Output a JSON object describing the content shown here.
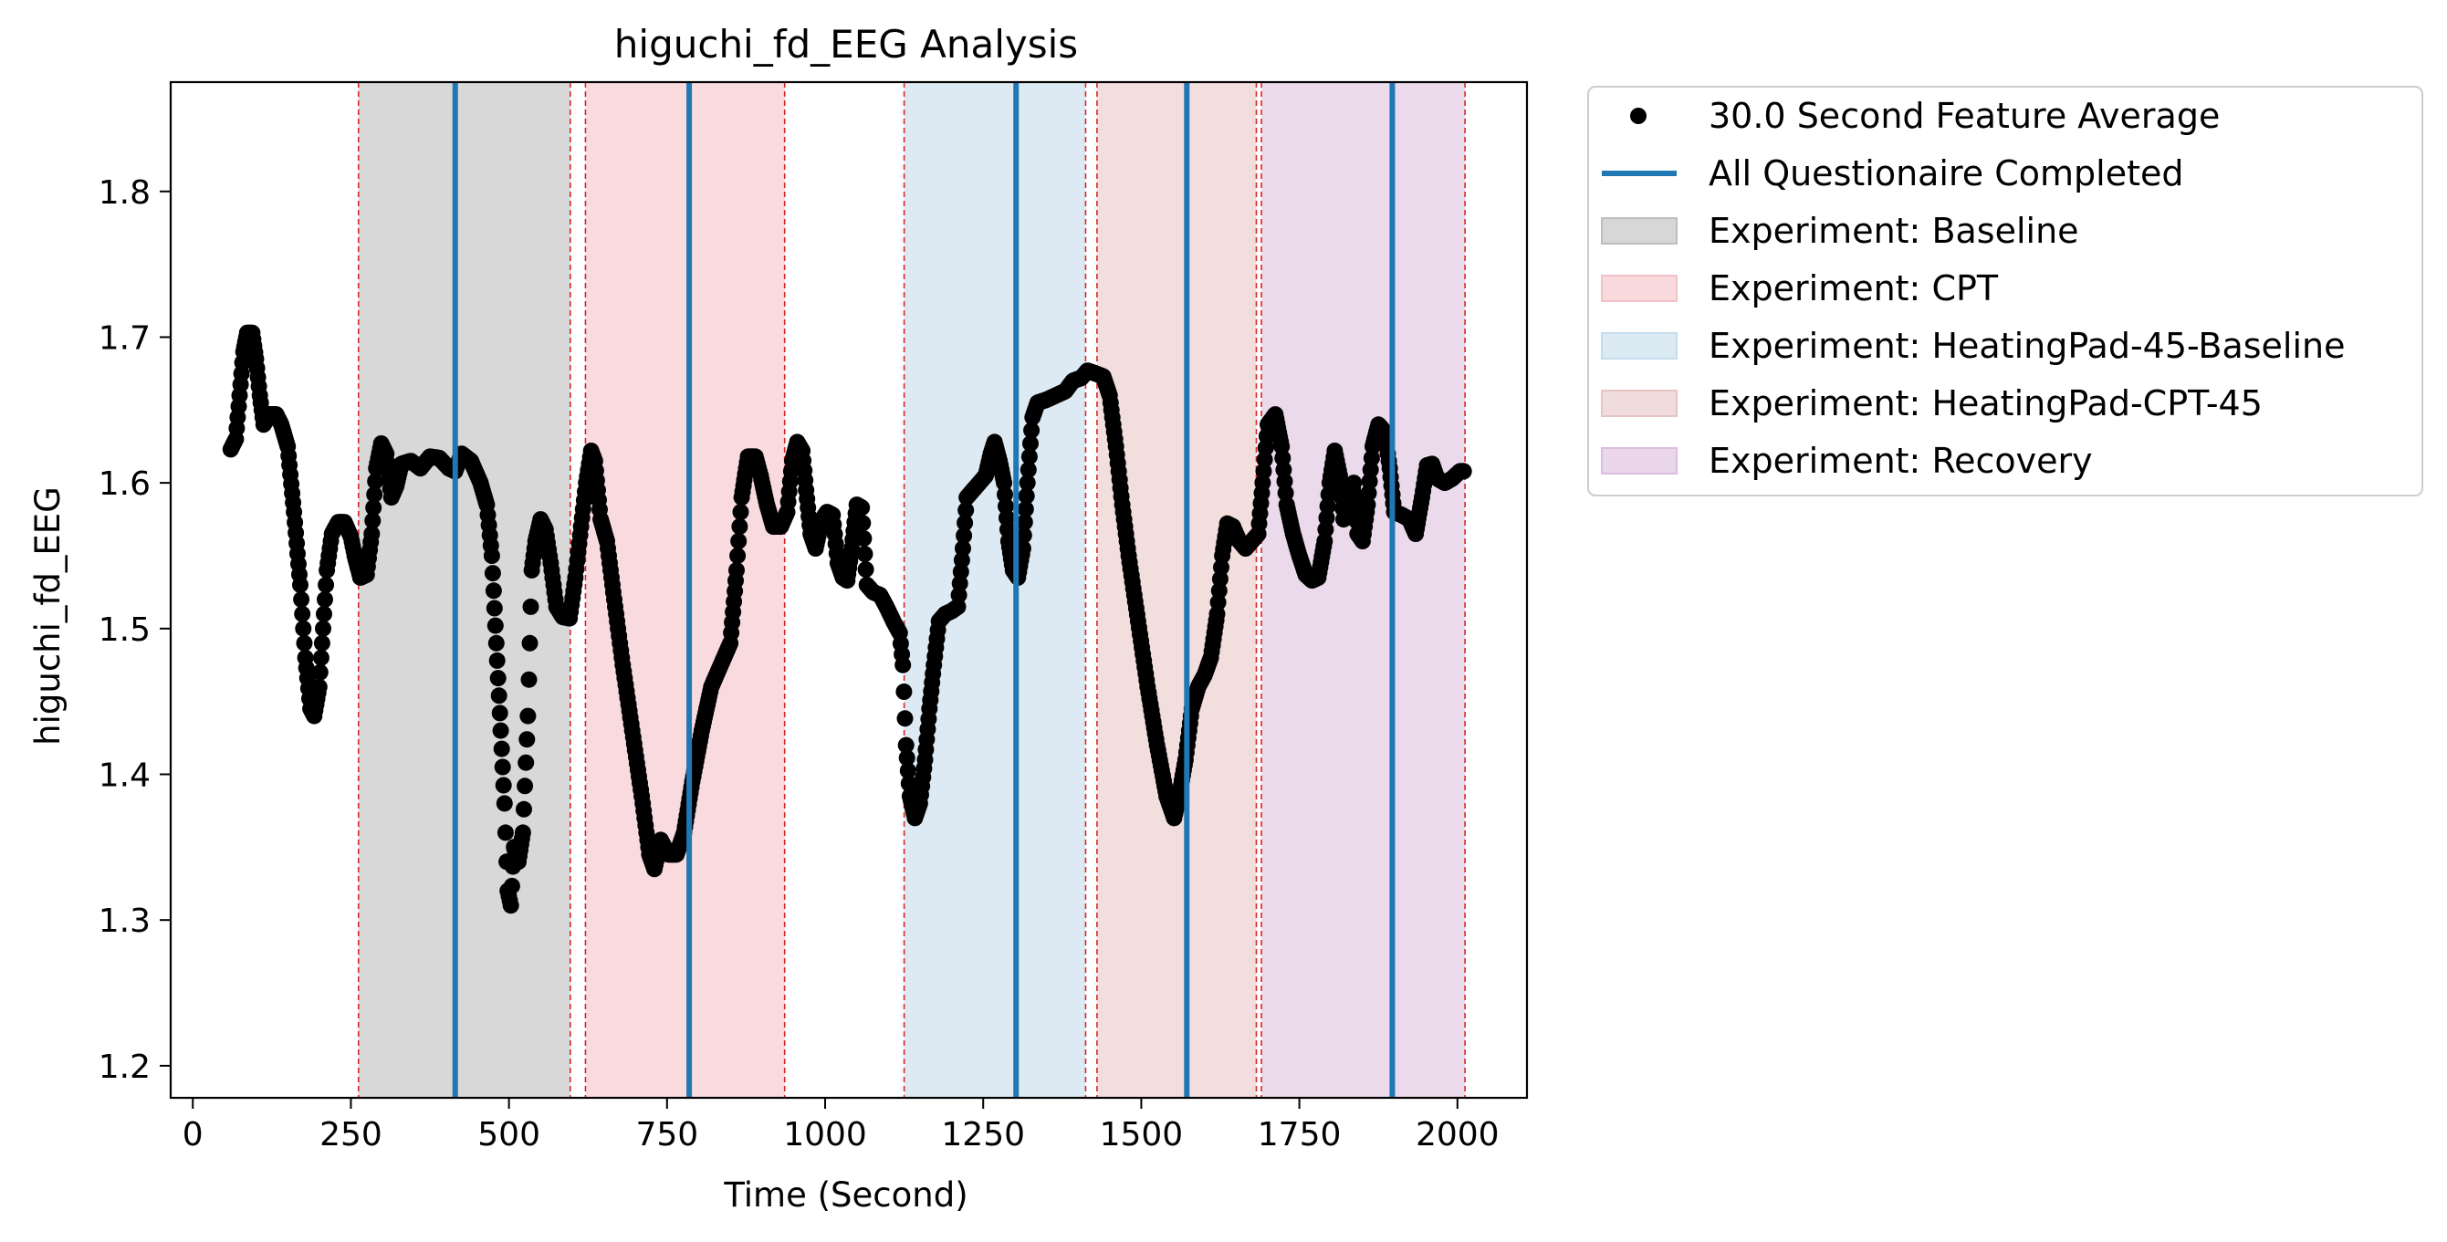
{
  "chart_data": {
    "type": "scatter",
    "title": "higuchi_fd_EEG Analysis",
    "xlabel": "Time (Second)",
    "ylabel": "higuchi_fd_EEG",
    "xlim": [
      -35,
      2110
    ],
    "ylim": [
      1.178,
      1.875
    ],
    "xticks": [
      0,
      250,
      500,
      750,
      1000,
      1250,
      1500,
      1750,
      2000
    ],
    "yticks": [
      1.2,
      1.3,
      1.4,
      1.5,
      1.6,
      1.7,
      1.8
    ],
    "ytick_labels": [
      "1.2",
      "1.3",
      "1.4",
      "1.5",
      "1.6",
      "1.7",
      "1.8"
    ],
    "grid": false,
    "legend_position": "outside right, top",
    "legend": [
      {
        "label": "30.0 Second Feature Average",
        "kind": "marker",
        "color": "#000000"
      },
      {
        "label": "All Questionaire Completed",
        "kind": "line",
        "color": "#1f77b4"
      },
      {
        "label": "Experiment: Baseline",
        "kind": "patch",
        "color": "#bdbdbd"
      },
      {
        "label": "Experiment: CPT",
        "kind": "patch",
        "color": "#f3c1c7"
      },
      {
        "label": "Experiment: HeatingPad-45-Baseline",
        "kind": "patch",
        "color": "#c4dced"
      },
      {
        "label": "Experiment: HeatingPad-CPT-45",
        "kind": "patch",
        "color": "#e6c4c2"
      },
      {
        "label": "Experiment: Recovery",
        "kind": "patch",
        "color": "#dcbcdf"
      }
    ],
    "spans": [
      {
        "name": "Experiment: Baseline",
        "start": 262,
        "end": 597,
        "color": "#d8d8d8"
      },
      {
        "name": "Experiment: CPT",
        "start": 621,
        "end": 936,
        "color": "#f8dadf"
      },
      {
        "name": "Experiment: HeatingPad-45-Baseline",
        "start": 1125,
        "end": 1412,
        "color": "#dde9f3"
      },
      {
        "name": "Experiment: HeatingPad-CPT-45",
        "start": 1430,
        "end": 1682,
        "color": "#f2dedc"
      },
      {
        "name": "Experiment: Recovery",
        "start": 1690,
        "end": 2012,
        "color": "#ebd9ec"
      }
    ],
    "boundaries": [
      262,
      597,
      621,
      936,
      1125,
      1412,
      1430,
      1682,
      1690,
      2012
    ],
    "boundary_color": "#d62728",
    "questionnaire_lines": [
      415,
      785,
      1302,
      1572,
      1897
    ],
    "questionnaire_color": "#1f77b4",
    "series": [
      {
        "name": "30.0 Second Feature Average",
        "color": "#000000",
        "points": [
          [
            60,
            1.623
          ],
          [
            68,
            1.63
          ],
          [
            74,
            1.66
          ],
          [
            80,
            1.69
          ],
          [
            86,
            1.703
          ],
          [
            94,
            1.703
          ],
          [
            100,
            1.685
          ],
          [
            106,
            1.66
          ],
          [
            112,
            1.64
          ],
          [
            122,
            1.647
          ],
          [
            132,
            1.647
          ],
          [
            140,
            1.64
          ],
          [
            150,
            1.625
          ],
          [
            160,
            1.58
          ],
          [
            170,
            1.53
          ],
          [
            178,
            1.48
          ],
          [
            186,
            1.445
          ],
          [
            192,
            1.44
          ],
          [
            200,
            1.46
          ],
          [
            206,
            1.5
          ],
          [
            212,
            1.54
          ],
          [
            220,
            1.565
          ],
          [
            230,
            1.573
          ],
          [
            240,
            1.573
          ],
          [
            250,
            1.563
          ],
          [
            256,
            1.55
          ],
          [
            265,
            1.535
          ],
          [
            275,
            1.537
          ],
          [
            283,
            1.565
          ],
          [
            290,
            1.61
          ],
          [
            298,
            1.627
          ],
          [
            306,
            1.62
          ],
          [
            314,
            1.59
          ],
          [
            322,
            1.598
          ],
          [
            330,
            1.613
          ],
          [
            345,
            1.615
          ],
          [
            360,
            1.61
          ],
          [
            375,
            1.618
          ],
          [
            390,
            1.617
          ],
          [
            405,
            1.61
          ],
          [
            415,
            1.608
          ],
          [
            425,
            1.62
          ],
          [
            440,
            1.615
          ],
          [
            455,
            1.6
          ],
          [
            465,
            1.585
          ],
          [
            473,
            1.55
          ],
          [
            480,
            1.49
          ],
          [
            487,
            1.43
          ],
          [
            493,
            1.38
          ],
          [
            498,
            1.32
          ],
          [
            503,
            1.31
          ],
          [
            508,
            1.35
          ],
          [
            515,
            1.34
          ],
          [
            522,
            1.36
          ],
          [
            530,
            1.44
          ],
          [
            536,
            1.54
          ],
          [
            542,
            1.56
          ],
          [
            550,
            1.575
          ],
          [
            558,
            1.568
          ],
          [
            566,
            1.545
          ],
          [
            575,
            1.515
          ],
          [
            585,
            1.508
          ],
          [
            596,
            1.507
          ],
          [
            605,
            1.535
          ],
          [
            614,
            1.57
          ],
          [
            622,
            1.6
          ],
          [
            630,
            1.622
          ],
          [
            636,
            1.615
          ],
          [
            645,
            1.575
          ],
          [
            655,
            1.56
          ],
          [
            665,
            1.525
          ],
          [
            680,
            1.475
          ],
          [
            695,
            1.43
          ],
          [
            710,
            1.385
          ],
          [
            722,
            1.345
          ],
          [
            730,
            1.335
          ],
          [
            740,
            1.355
          ],
          [
            752,
            1.345
          ],
          [
            765,
            1.345
          ],
          [
            777,
            1.36
          ],
          [
            790,
            1.395
          ],
          [
            805,
            1.43
          ],
          [
            820,
            1.46
          ],
          [
            835,
            1.475
          ],
          [
            850,
            1.49
          ],
          [
            860,
            1.54
          ],
          [
            868,
            1.59
          ],
          [
            878,
            1.618
          ],
          [
            890,
            1.618
          ],
          [
            898,
            1.605
          ],
          [
            908,
            1.585
          ],
          [
            918,
            1.57
          ],
          [
            930,
            1.57
          ],
          [
            940,
            1.58
          ],
          [
            948,
            1.615
          ],
          [
            956,
            1.628
          ],
          [
            964,
            1.622
          ],
          [
            970,
            1.595
          ],
          [
            977,
            1.565
          ],
          [
            985,
            1.555
          ],
          [
            995,
            1.575
          ],
          [
            1003,
            1.58
          ],
          [
            1012,
            1.578
          ],
          [
            1020,
            1.545
          ],
          [
            1028,
            1.535
          ],
          [
            1035,
            1.533
          ],
          [
            1042,
            1.555
          ],
          [
            1050,
            1.585
          ],
          [
            1058,
            1.583
          ],
          [
            1066,
            1.53
          ],
          [
            1076,
            1.525
          ],
          [
            1087,
            1.523
          ],
          [
            1097,
            1.515
          ],
          [
            1108,
            1.505
          ],
          [
            1118,
            1.497
          ],
          [
            1123,
            1.475
          ],
          [
            1128,
            1.42
          ],
          [
            1134,
            1.385
          ],
          [
            1142,
            1.37
          ],
          [
            1150,
            1.38
          ],
          [
            1158,
            1.41
          ],
          [
            1165,
            1.445
          ],
          [
            1172,
            1.475
          ],
          [
            1180,
            1.505
          ],
          [
            1190,
            1.51
          ],
          [
            1200,
            1.512
          ],
          [
            1210,
            1.515
          ],
          [
            1218,
            1.555
          ],
          [
            1224,
            1.59
          ],
          [
            1234,
            1.595
          ],
          [
            1244,
            1.6
          ],
          [
            1254,
            1.605
          ],
          [
            1262,
            1.62
          ],
          [
            1268,
            1.628
          ],
          [
            1276,
            1.615
          ],
          [
            1283,
            1.6
          ],
          [
            1290,
            1.56
          ],
          [
            1297,
            1.54
          ],
          [
            1305,
            1.535
          ],
          [
            1313,
            1.555
          ],
          [
            1320,
            1.6
          ],
          [
            1328,
            1.645
          ],
          [
            1336,
            1.655
          ],
          [
            1350,
            1.657
          ],
          [
            1365,
            1.66
          ],
          [
            1380,
            1.663
          ],
          [
            1392,
            1.67
          ],
          [
            1405,
            1.672
          ],
          [
            1415,
            1.677
          ],
          [
            1428,
            1.675
          ],
          [
            1440,
            1.673
          ],
          [
            1450,
            1.66
          ],
          [
            1460,
            1.625
          ],
          [
            1470,
            1.585
          ],
          [
            1480,
            1.55
          ],
          [
            1495,
            1.505
          ],
          [
            1510,
            1.46
          ],
          [
            1525,
            1.42
          ],
          [
            1540,
            1.385
          ],
          [
            1552,
            1.37
          ],
          [
            1560,
            1.385
          ],
          [
            1570,
            1.41
          ],
          [
            1580,
            1.445
          ],
          [
            1590,
            1.46
          ],
          [
            1600,
            1.468
          ],
          [
            1610,
            1.48
          ],
          [
            1620,
            1.51
          ],
          [
            1628,
            1.55
          ],
          [
            1636,
            1.572
          ],
          [
            1645,
            1.57
          ],
          [
            1655,
            1.56
          ],
          [
            1665,
            1.555
          ],
          [
            1675,
            1.56
          ],
          [
            1685,
            1.565
          ],
          [
            1692,
            1.6
          ],
          [
            1700,
            1.64
          ],
          [
            1712,
            1.647
          ],
          [
            1722,
            1.625
          ],
          [
            1730,
            1.585
          ],
          [
            1740,
            1.565
          ],
          [
            1750,
            1.55
          ],
          [
            1760,
            1.537
          ],
          [
            1770,
            1.533
          ],
          [
            1780,
            1.535
          ],
          [
            1790,
            1.56
          ],
          [
            1798,
            1.6
          ],
          [
            1806,
            1.622
          ],
          [
            1814,
            1.605
          ],
          [
            1820,
            1.575
          ],
          [
            1828,
            1.58
          ],
          [
            1836,
            1.6
          ],
          [
            1842,
            1.565
          ],
          [
            1850,
            1.56
          ],
          [
            1858,
            1.585
          ],
          [
            1866,
            1.625
          ],
          [
            1875,
            1.64
          ],
          [
            1885,
            1.635
          ],
          [
            1893,
            1.61
          ],
          [
            1900,
            1.58
          ],
          [
            1912,
            1.578
          ],
          [
            1924,
            1.575
          ],
          [
            1934,
            1.565
          ],
          [
            1944,
            1.59
          ],
          [
            1952,
            1.612
          ],
          [
            1960,
            1.613
          ],
          [
            1968,
            1.603
          ],
          [
            1980,
            1.6
          ],
          [
            1992,
            1.603
          ],
          [
            2004,
            1.608
          ],
          [
            2010,
            1.608
          ]
        ]
      }
    ]
  }
}
